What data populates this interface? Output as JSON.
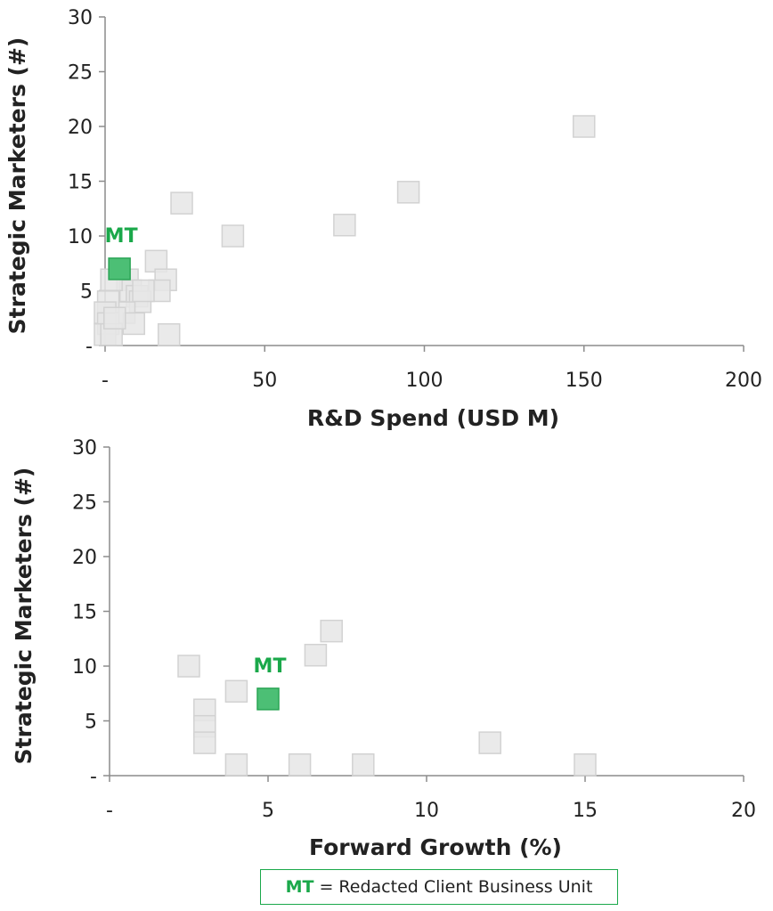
{
  "colors": {
    "marker": "#e6e6e6",
    "marker_stroke": "#d2d2d2",
    "highlight": "#4cbf75",
    "highlight_stroke": "#2aa555",
    "highlight_text": "#1aa84a",
    "axis": "#8c8c8c"
  },
  "legend": {
    "key": "MT",
    "text": "= Redacted Client Business Unit"
  },
  "chart_data": [
    {
      "type": "scatter",
      "xlabel": "R&D Spend (USD M)",
      "ylabel": "Strategic Marketers (#)",
      "xlim": [
        0,
        200
      ],
      "ylim": [
        0,
        30
      ],
      "x_ticks": [
        {
          "value": 0,
          "label": "-"
        },
        {
          "value": 50,
          "label": "50"
        },
        {
          "value": 100,
          "label": "100"
        },
        {
          "value": 150,
          "label": "150"
        },
        {
          "value": 200,
          "label": "200"
        }
      ],
      "y_ticks": [
        {
          "value": 0,
          "label": "-"
        },
        {
          "value": 5,
          "label": "5"
        },
        {
          "value": 10,
          "label": "10"
        },
        {
          "value": 15,
          "label": "15"
        },
        {
          "value": 20,
          "label": "20"
        },
        {
          "value": 25,
          "label": "25"
        },
        {
          "value": 30,
          "label": "30"
        }
      ],
      "points": [
        {
          "x": 150,
          "y": 20
        },
        {
          "x": 95,
          "y": 14
        },
        {
          "x": 75,
          "y": 11
        },
        {
          "x": 40,
          "y": 10
        },
        {
          "x": 24,
          "y": 13
        },
        {
          "x": 16,
          "y": 7.7
        },
        {
          "x": 19,
          "y": 6
        },
        {
          "x": 17,
          "y": 5
        },
        {
          "x": 20,
          "y": 1
        },
        {
          "x": 7,
          "y": 6
        },
        {
          "x": 8,
          "y": 5
        },
        {
          "x": 10,
          "y": 4.5
        },
        {
          "x": 11,
          "y": 4
        },
        {
          "x": 12,
          "y": 5
        },
        {
          "x": 6,
          "y": 3
        },
        {
          "x": 9,
          "y": 2
        },
        {
          "x": 2,
          "y": 6
        },
        {
          "x": 1,
          "y": 4
        },
        {
          "x": 0,
          "y": 3
        },
        {
          "x": 1,
          "y": 2
        },
        {
          "x": 0,
          "y": 1
        },
        {
          "x": 2,
          "y": 1
        },
        {
          "x": 3,
          "y": 2.5
        }
      ],
      "highlight": {
        "label": "MT",
        "x": 4.5,
        "y": 7
      }
    },
    {
      "type": "scatter",
      "xlabel": "Forward Growth (%)",
      "ylabel": "Strategic Marketers (#)",
      "xlim": [
        0,
        20
      ],
      "ylim": [
        0,
        30
      ],
      "x_ticks": [
        {
          "value": 0,
          "label": "-"
        },
        {
          "value": 5,
          "label": "5"
        },
        {
          "value": 10,
          "label": "10"
        },
        {
          "value": 15,
          "label": "15"
        },
        {
          "value": 20,
          "label": "20"
        }
      ],
      "y_ticks": [
        {
          "value": 0,
          "label": "-"
        },
        {
          "value": 5,
          "label": "5"
        },
        {
          "value": 10,
          "label": "10"
        },
        {
          "value": 15,
          "label": "15"
        },
        {
          "value": 20,
          "label": "20"
        },
        {
          "value": 25,
          "label": "25"
        },
        {
          "value": 30,
          "label": "30"
        }
      ],
      "points": [
        {
          "x": 2.5,
          "y": 10
        },
        {
          "x": 6.5,
          "y": 11
        },
        {
          "x": 7,
          "y": 13.2
        },
        {
          "x": 4,
          "y": 7.7
        },
        {
          "x": 3,
          "y": 6
        },
        {
          "x": 3,
          "y": 4.5
        },
        {
          "x": 3,
          "y": 3
        },
        {
          "x": 4,
          "y": 1
        },
        {
          "x": 6,
          "y": 1
        },
        {
          "x": 8,
          "y": 1
        },
        {
          "x": 12,
          "y": 3
        },
        {
          "x": 15,
          "y": 1
        }
      ],
      "highlight": {
        "label": "MT",
        "x": 5,
        "y": 7
      }
    }
  ]
}
